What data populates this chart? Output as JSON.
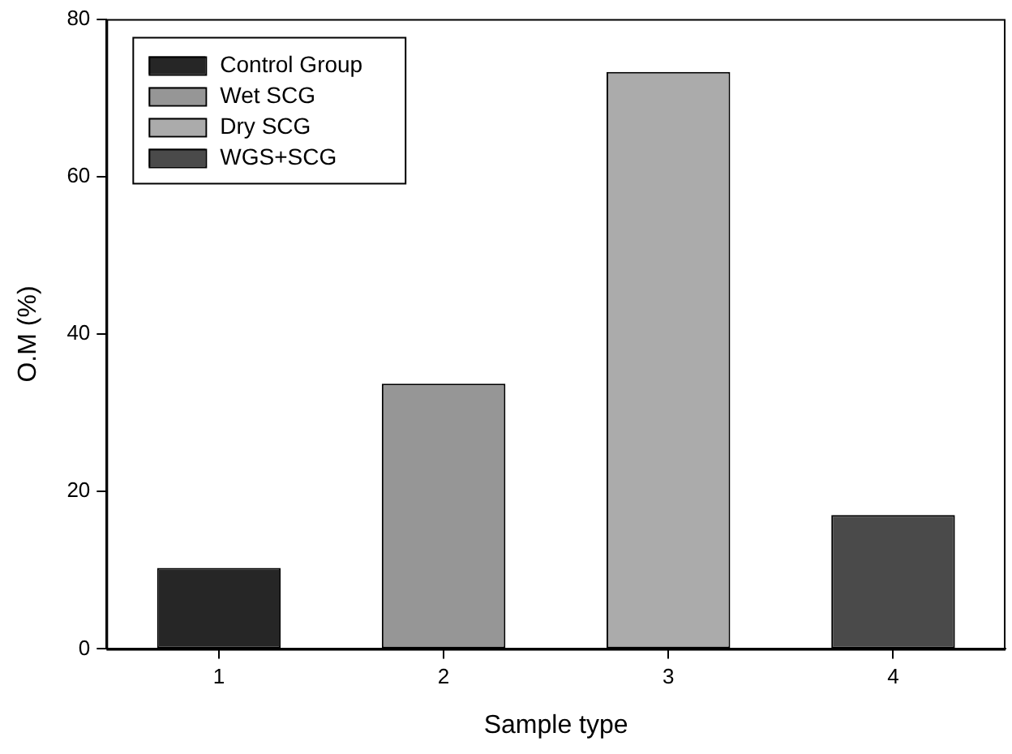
{
  "chart_data": {
    "type": "bar",
    "xlabel": "Sample type",
    "ylabel": "O.M (%)",
    "categories": [
      "1",
      "2",
      "3",
      "4"
    ],
    "series": [
      {
        "name": "Control Group",
        "color": "#262626",
        "values": [
          10.3,
          null,
          null,
          null
        ]
      },
      {
        "name": "Wet SCG",
        "color": "#969696",
        "values": [
          null,
          33.7,
          null,
          null
        ]
      },
      {
        "name": "Dry SCG",
        "color": "#ababab",
        "values": [
          null,
          null,
          73.3,
          null
        ]
      },
      {
        "name": "WGS+SCG",
        "color": "#4a4a4a",
        "values": [
          null,
          null,
          null,
          17.0
        ]
      }
    ],
    "ylim": [
      0,
      80
    ],
    "yticks": [
      0,
      20,
      40,
      60,
      80
    ],
    "grid": false,
    "legend": "top left"
  }
}
